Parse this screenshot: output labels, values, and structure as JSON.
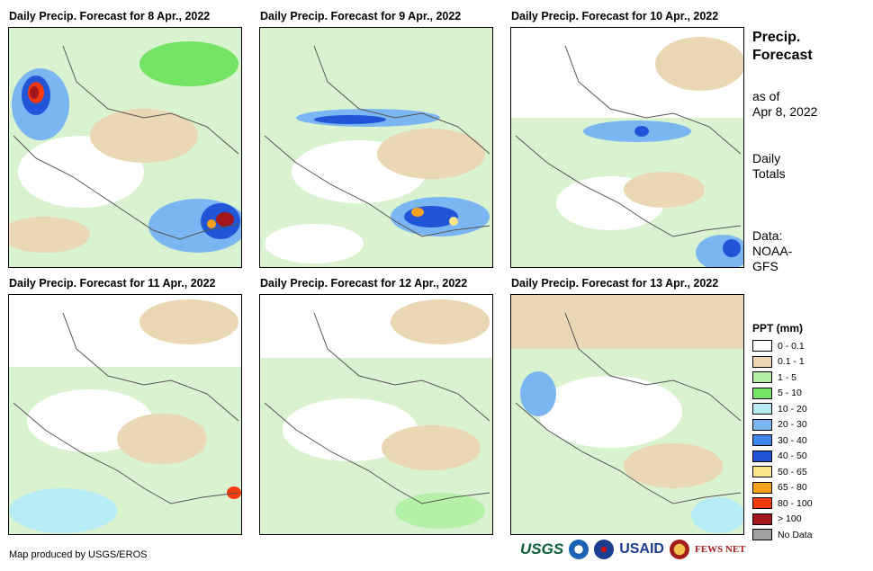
{
  "panels": [
    {
      "title": "Daily Precip. Forecast for 8 Apr., 2022"
    },
    {
      "title": "Daily Precip. Forecast for 9 Apr., 2022"
    },
    {
      "title": "Daily Precip. Forecast for 10 Apr., 2022"
    },
    {
      "title": "Daily Precip. Forecast for 11 Apr., 2022"
    },
    {
      "title": "Daily Precip. Forecast for 12 Apr., 2022"
    },
    {
      "title": "Daily Precip. Forecast for 13 Apr., 2022"
    }
  ],
  "sidebar": {
    "title_line1": "Precip.",
    "title_line2": "Forecast",
    "asof_line1": "as of",
    "asof_line2": "Apr 8, 2022",
    "totals_line1": "Daily",
    "totals_line2": "Totals",
    "data_line1": "Data:",
    "data_line2": "NOAA-",
    "data_line3": "GFS"
  },
  "legend": {
    "title": "PPT (mm)",
    "items": [
      {
        "label": "0 - 0.1",
        "color": "#ffffff"
      },
      {
        "label": "0.1 - 1",
        "color": "#ead7b3"
      },
      {
        "label": "1 - 5",
        "color": "#b5f0a8"
      },
      {
        "label": "5 - 10",
        "color": "#75e366"
      },
      {
        "label": "10 - 20",
        "color": "#b7ecf5"
      },
      {
        "label": "20 - 30",
        "color": "#7cb6f2"
      },
      {
        "label": "30 - 40",
        "color": "#3f86ea"
      },
      {
        "label": "40 - 50",
        "color": "#1f55d6"
      },
      {
        "label": "50 - 65",
        "color": "#fde58c"
      },
      {
        "label": "65 - 80",
        "color": "#f7a21a"
      },
      {
        "label": "80 - 100",
        "color": "#f23a0e"
      },
      {
        "label": "> 100",
        "color": "#a3161a"
      },
      {
        "label": "No Data",
        "color": "#a0a0a0"
      }
    ]
  },
  "credit": "Map produced by USGS/EROS",
  "logos": {
    "usgs": "USGS",
    "usaid": "USAID",
    "fews": "FEWS NET"
  }
}
